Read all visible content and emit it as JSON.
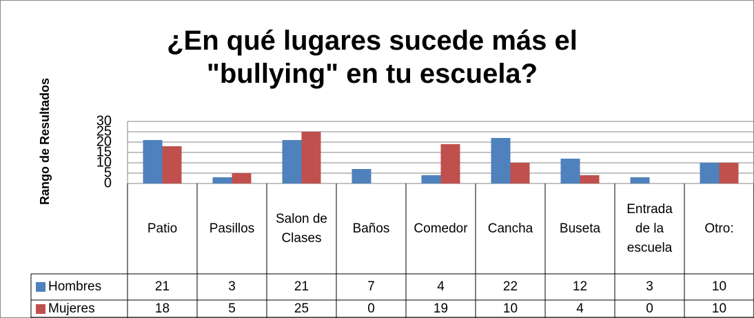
{
  "chart_data": {
    "type": "bar",
    "title": "¿En qué lugares sucede más el \"bullying\" en tu escuela?",
    "y_label": "Rango de Resultados",
    "categories": [
      "Patio",
      "Pasillos",
      "Salon de Clases",
      "Baños",
      "Comedor",
      "Cancha",
      "Buseta",
      "Entrada de la escuela",
      "Otro:"
    ],
    "series": [
      {
        "name": "Hombres",
        "color": "#4f81bd",
        "values": [
          21,
          3,
          21,
          7,
          4,
          22,
          12,
          3,
          10
        ]
      },
      {
        "name": "Mujeres",
        "color": "#c0504d",
        "values": [
          18,
          5,
          25,
          0,
          19,
          10,
          4,
          0,
          10
        ]
      }
    ],
    "ylim": [
      0,
      30
    ],
    "yticks": [
      0,
      5,
      10,
      15,
      20,
      25,
      30
    ],
    "grid": true,
    "data_table": true
  }
}
